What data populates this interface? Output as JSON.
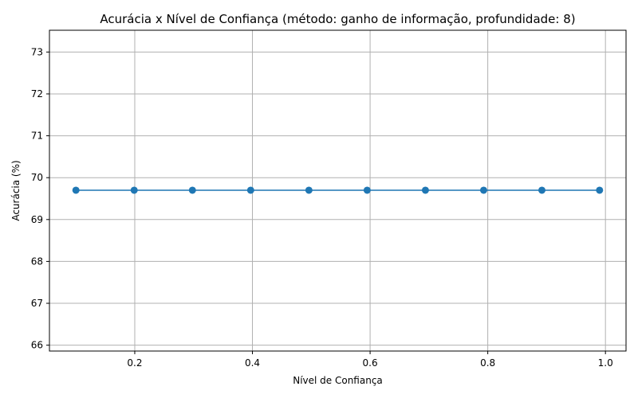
{
  "chart_data": {
    "type": "line",
    "title": "Acurácia x Nível de Confiança (método: ganho de informação, profundidade: 8)",
    "xlabel": "Nível de Confiança",
    "ylabel": "Acurácia (%)",
    "xlim": [
      0.055,
      1.035
    ],
    "ylim": [
      65.86,
      73.52
    ],
    "xticks": [
      0.2,
      0.4,
      0.6,
      0.8,
      1.0
    ],
    "xtick_labels": [
      "0.2",
      "0.4",
      "0.6",
      "0.8",
      "1.0"
    ],
    "yticks": [
      66,
      67,
      68,
      69,
      70,
      71,
      72,
      73
    ],
    "ytick_labels": [
      "66",
      "67",
      "68",
      "69",
      "70",
      "71",
      "72",
      "73"
    ],
    "grid": true,
    "color": "#1f77b4",
    "marker": "circle",
    "series": [
      {
        "x": [
          0.1,
          0.199,
          0.298,
          0.397,
          0.496,
          0.595,
          0.694,
          0.793,
          0.892,
          0.99
        ],
        "y": [
          69.7,
          69.7,
          69.7,
          69.7,
          69.7,
          69.7,
          69.7,
          69.7,
          69.7,
          69.7
        ]
      }
    ]
  }
}
